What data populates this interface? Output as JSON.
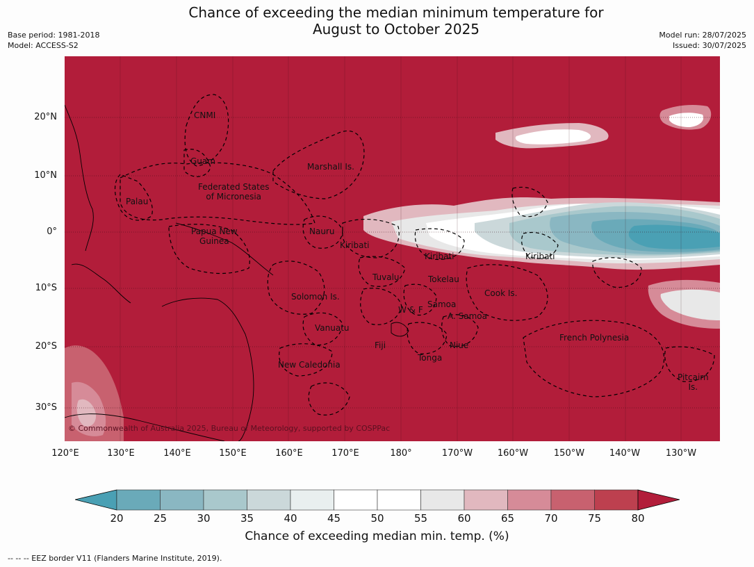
{
  "title": {
    "line1": "Chance of exceeding the median minimum temperature for",
    "line2": "August to October 2025"
  },
  "meta": {
    "base_period": "Base period: 1981-2018",
    "model": "Model: ACCESS-S2",
    "model_run": "Model run: 28/07/2025",
    "issued": "Issued: 30/07/2025"
  },
  "map": {
    "copyright": "© Commonwealth of Australia 2025, Bureau of Meteorology, supported by COSPPac",
    "background_color": "#b21d3a",
    "lat_ticks": [
      "20°N",
      "10°N",
      "0°",
      "10°S",
      "20°S",
      "30°S"
    ],
    "lon_ticks": [
      "120°E",
      "130°E",
      "140°E",
      "150°E",
      "160°E",
      "170°E",
      "180°",
      "170°W",
      "160°W",
      "150°W",
      "140°W",
      "130°W"
    ],
    "regions": {
      "cnmi": "CNMI",
      "guam": "Guam",
      "marshall": "Marshall Is.",
      "fsm1": "Federated States",
      "fsm2": "of Micronesia",
      "palau": "Palau",
      "png1": "Papua New",
      "png2": "Guinea",
      "nauru": "Nauru",
      "kiribati_w": "Kiribati",
      "kiribati_c": "Kiribati",
      "kiribati_e": "Kiribati",
      "tuvalu": "Tuvalu",
      "tokelau": "Tokelau",
      "cook": "Cook Is.",
      "samoa": "Samoa",
      "wf": "W & F",
      "asamoa": "A. Samoa",
      "solomon": "Solomon Is.",
      "vanuatu": "Vanuatu",
      "fiji": "Fiji",
      "niue": "Niue",
      "tonga": "Tonga",
      "newcal": "New Caledonia",
      "frpoly": "French Polynesia",
      "pitcairn1": "Pitcairn",
      "pitcairn2": "Is."
    }
  },
  "colorbar": {
    "ticks": [
      "20",
      "25",
      "30",
      "35",
      "40",
      "45",
      "50",
      "55",
      "60",
      "65",
      "70",
      "75",
      "80"
    ],
    "colors": [
      "#4aa0b4",
      "#6aaab9",
      "#8ab7c2",
      "#a9c8cc",
      "#cbd8da",
      "#e9efef",
      "#ffffff",
      "#ffffff",
      "#e8e8e8",
      "#e1b8bf",
      "#d68b98",
      "#c8616f",
      "#bd404f",
      "#b21d3a"
    ],
    "label": "Chance of exceeding median min. temp. (%)"
  },
  "footnote": "--  --  -- EEZ border V11 (Flanders Marine Institute, 2019)."
}
